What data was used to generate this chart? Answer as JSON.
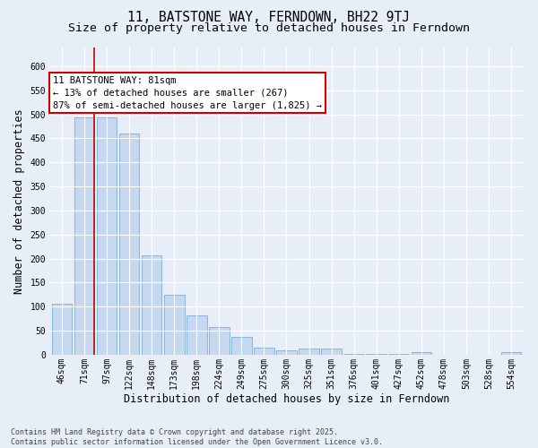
{
  "title_line1": "11, BATSTONE WAY, FERNDOWN, BH22 9TJ",
  "title_line2": "Size of property relative to detached houses in Ferndown",
  "xlabel": "Distribution of detached houses by size in Ferndown",
  "ylabel": "Number of detached properties",
  "categories": [
    "46sqm",
    "71sqm",
    "97sqm",
    "122sqm",
    "148sqm",
    "173sqm",
    "198sqm",
    "224sqm",
    "249sqm",
    "275sqm",
    "300sqm",
    "325sqm",
    "351sqm",
    "376sqm",
    "401sqm",
    "427sqm",
    "452sqm",
    "478sqm",
    "503sqm",
    "528sqm",
    "554sqm"
  ],
  "values": [
    107,
    494,
    494,
    460,
    207,
    124,
    82,
    57,
    38,
    14,
    10,
    12,
    12,
    2,
    2,
    2,
    5,
    0,
    0,
    0,
    5
  ],
  "bar_color": "#c5d8f0",
  "bar_edge_color": "#7bafd4",
  "vline_x": 1.425,
  "annotation_text": "11 BATSTONE WAY: 81sqm\n← 13% of detached houses are smaller (267)\n87% of semi-detached houses are larger (1,825) →",
  "annotation_box_facecolor": "#ffffff",
  "annotation_box_edgecolor": "#cc0000",
  "vline_color": "#cc0000",
  "ylim": [
    0,
    640
  ],
  "yticks": [
    0,
    50,
    100,
    150,
    200,
    250,
    300,
    350,
    400,
    450,
    500,
    550,
    600
  ],
  "bg_color": "#e8eef8",
  "plot_bg_color": "#e8eef8",
  "footer_text": "Contains HM Land Registry data © Crown copyright and database right 2025.\nContains public sector information licensed under the Open Government Licence v3.0.",
  "title_fontsize": 10.5,
  "subtitle_fontsize": 9.5,
  "axis_label_fontsize": 8.5,
  "tick_fontsize": 7,
  "annotation_fontsize": 7.5,
  "footer_fontsize": 6
}
